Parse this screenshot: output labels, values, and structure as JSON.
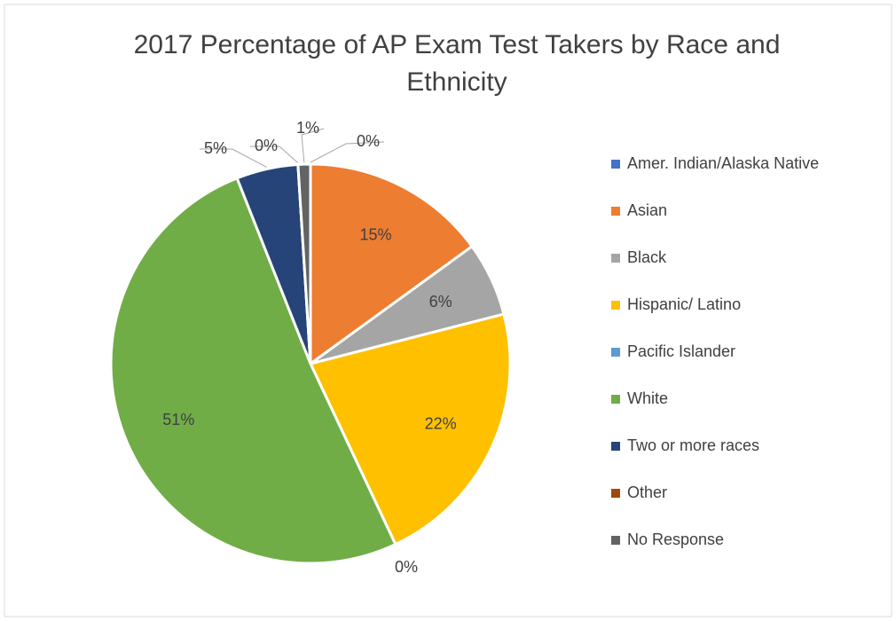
{
  "chart_data": {
    "type": "pie",
    "title": "2017 Percentage of AP Exam Test Takers by Race and Ethnicity",
    "categories": [
      "Amer. Indian/Alaska Native",
      "Asian",
      "Black",
      "Hispanic/ Latino",
      "Pacific Islander",
      "White",
      "Two or more races",
      "Other",
      "No Response"
    ],
    "values": [
      0,
      15,
      6,
      22,
      0,
      51,
      5,
      0,
      1
    ],
    "value_labels": [
      "0%",
      "15%",
      "6%",
      "22%",
      "0%",
      "51%",
      "5%",
      "0%",
      "1%"
    ],
    "colors": [
      "#4472c4",
      "#ed7d31",
      "#a5a5a5",
      "#ffc000",
      "#5b9bd5",
      "#70ad47",
      "#264478",
      "#9e480e",
      "#636363"
    ],
    "legend": "right"
  }
}
